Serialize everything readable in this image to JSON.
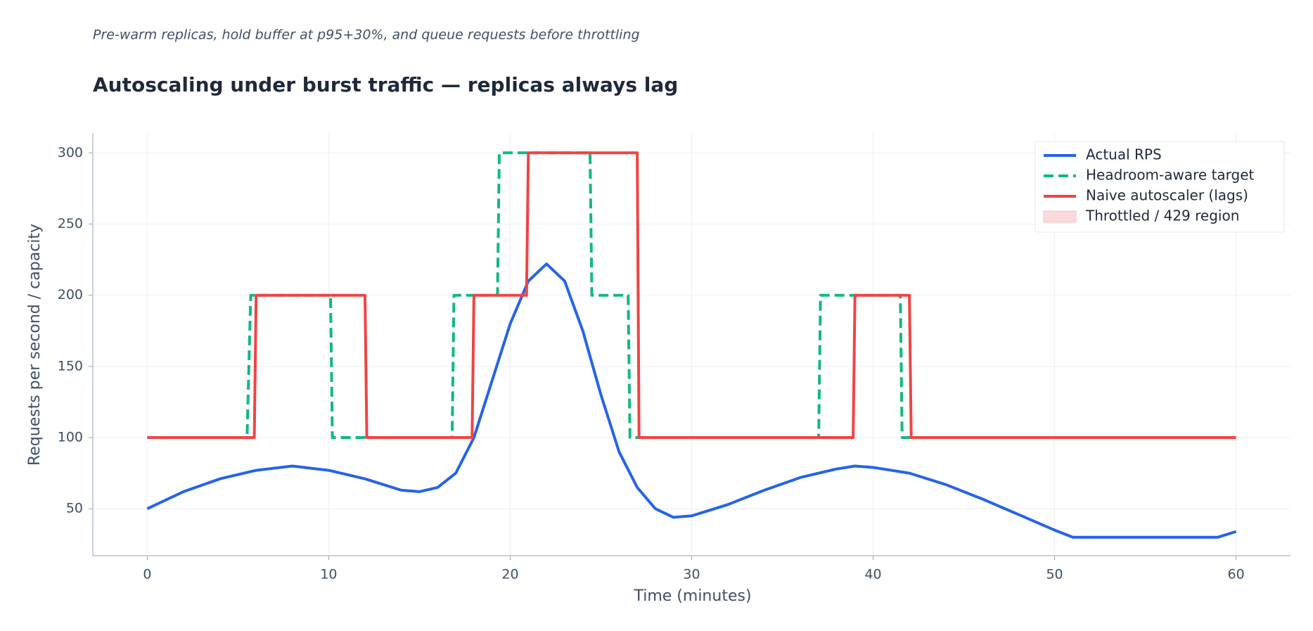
{
  "chart_data": {
    "type": "line",
    "subtitle": "Pre-warm replicas, hold buffer at p95+30%, and queue requests before throttling",
    "title": "Autoscaling under burst traffic — replicas always lag",
    "x_label": "Time (minutes)",
    "y_label": "Requests per second / capacity",
    "xlim": [
      -3,
      63
    ],
    "xticks": [
      0,
      10,
      20,
      30,
      40,
      50,
      60
    ],
    "ylim": [
      17,
      314
    ],
    "yticks": [
      50,
      100,
      150,
      200,
      250,
      300
    ],
    "grid": true,
    "legend": "upper right",
    "series": [
      {
        "name": "Actual RPS",
        "color": "#2563eb",
        "style": "solid",
        "x": [
          0,
          2,
          4,
          6,
          8,
          10,
          12,
          14,
          15,
          16,
          17,
          18,
          19,
          20,
          21,
          22,
          23,
          24,
          25,
          26,
          27,
          28,
          29,
          30,
          32,
          34,
          36,
          38,
          39,
          40,
          42,
          44,
          46,
          48,
          50,
          51,
          52,
          55,
          59,
          60
        ],
        "values": [
          50,
          62,
          71,
          77,
          80,
          77,
          71,
          63,
          62,
          65,
          75,
          100,
          140,
          180,
          210,
          222,
          210,
          175,
          130,
          90,
          65,
          50,
          44,
          45,
          53,
          63,
          72,
          78,
          80,
          79,
          75,
          67,
          57,
          46,
          35,
          30,
          30,
          30,
          30,
          34
        ]
      },
      {
        "name": "Headroom-aware target",
        "color": "#10b981",
        "style": "dashed",
        "x": [
          0,
          5.5,
          5.7,
          10.1,
          10.2,
          16.8,
          16.9,
          19.3,
          19.4,
          24.4,
          24.5,
          26.5,
          26.6,
          37.0,
          37.1,
          41.5,
          41.6,
          60
        ],
        "values": [
          100,
          100,
          200,
          200,
          100,
          100,
          200,
          200,
          300,
          300,
          200,
          200,
          100,
          100,
          200,
          200,
          100,
          100
        ]
      },
      {
        "name": "Naive autoscaler (lags)",
        "color": "#ef4444",
        "style": "solid",
        "x": [
          0,
          5.9,
          6.0,
          12.0,
          12.1,
          17.9,
          18.0,
          20.9,
          21.0,
          27.0,
          27.1,
          38.9,
          39.0,
          42.0,
          42.1,
          60
        ],
        "values": [
          100,
          100,
          200,
          200,
          100,
          100,
          200,
          200,
          300,
          300,
          100,
          100,
          200,
          200,
          100,
          100
        ]
      },
      {
        "name": "Throttled / 429 region",
        "color": "#fadadd",
        "style": "fill",
        "x": [],
        "values": []
      }
    ]
  }
}
